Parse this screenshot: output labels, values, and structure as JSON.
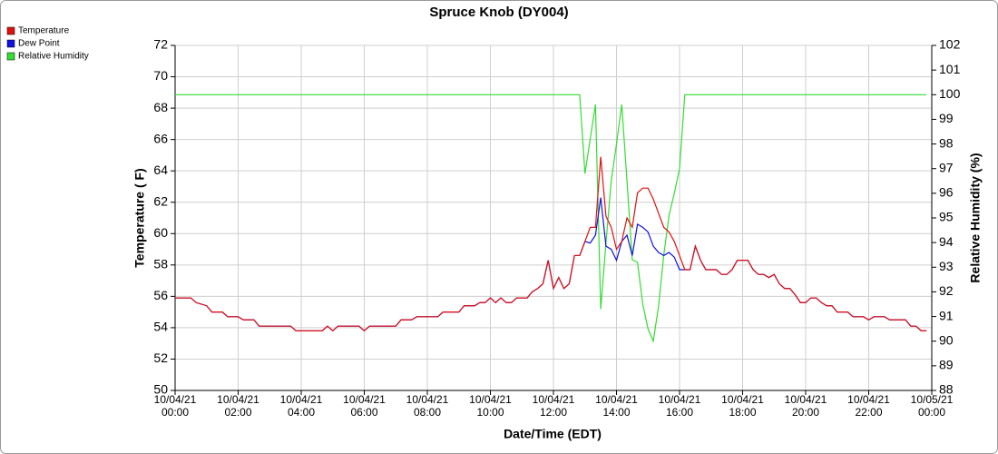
{
  "chart_data": {
    "type": "line",
    "title": "Spruce Knob (DY004)",
    "x_label": "Date/Time (EDT)",
    "y_label": "Temperature ( F)",
    "y2_label": "Relative Humidity (%)",
    "legend": "top-left",
    "grid": true,
    "xlim": [
      "10/04/21 00:00",
      "10/05/21 00:00"
    ],
    "xticks": [
      "10/04/21 00:00",
      "10/04/21 02:00",
      "10/04/21 04:00",
      "10/04/21 06:00",
      "10/04/21 08:00",
      "10/04/21 10:00",
      "10/04/21 12:00",
      "10/04/21 14:00",
      "10/04/21 16:00",
      "10/04/21 18:00",
      "10/04/21 20:00",
      "10/04/21 22:00",
      "10/05/21 00:00"
    ],
    "ylim": [
      50,
      72
    ],
    "yticks": [
      50,
      52,
      54,
      56,
      58,
      60,
      62,
      64,
      66,
      68,
      70,
      72
    ],
    "y2lim": [
      88,
      102
    ],
    "y2ticks": [
      88,
      89,
      90,
      91,
      92,
      93,
      94,
      95,
      96,
      97,
      98,
      99,
      100,
      101,
      102
    ],
    "x": [
      "10/04/21 00:00",
      "10/04/21 00:30",
      "10/04/21 00:40",
      "10/04/21 01:00",
      "10/04/21 01:10",
      "10/04/21 01:30",
      "10/04/21 01:40",
      "10/04/21 02:00",
      "10/04/21 02:10",
      "10/04/21 02:30",
      "10/04/21 02:40",
      "10/04/21 03:40",
      "10/04/21 03:50",
      "10/04/21 04:40",
      "10/04/21 04:50",
      "10/04/21 05:00",
      "10/04/21 05:10",
      "10/04/21 05:50",
      "10/04/21 06:00",
      "10/04/21 06:10",
      "10/04/21 07:00",
      "10/04/21 07:10",
      "10/04/21 07:30",
      "10/04/21 07:40",
      "10/04/21 08:20",
      "10/04/21 08:30",
      "10/04/21 09:00",
      "10/04/21 09:10",
      "10/04/21 09:30",
      "10/04/21 09:40",
      "10/04/21 09:50",
      "10/04/21 10:00",
      "10/04/21 10:10",
      "10/04/21 10:20",
      "10/04/21 10:30",
      "10/04/21 10:40",
      "10/04/21 10:50",
      "10/04/21 11:10",
      "10/04/21 11:20",
      "10/04/21 11:30",
      "10/04/21 11:40",
      "10/04/21 11:50",
      "10/04/21 12:00",
      "10/04/21 12:10",
      "10/04/21 12:20",
      "10/04/21 12:30",
      "10/04/21 12:40",
      "10/04/21 12:50",
      "10/04/21 13:00",
      "10/04/21 13:10",
      "10/04/21 13:20",
      "10/04/21 13:30",
      "10/04/21 13:40",
      "10/04/21 13:50",
      "10/04/21 14:00",
      "10/04/21 14:10",
      "10/04/21 14:20",
      "10/04/21 14:30",
      "10/04/21 14:40",
      "10/04/21 14:50",
      "10/04/21 15:00",
      "10/04/21 15:10",
      "10/04/21 15:20",
      "10/04/21 15:30",
      "10/04/21 15:40",
      "10/04/21 15:50",
      "10/04/21 16:00",
      "10/04/21 16:10",
      "10/04/21 16:20",
      "10/04/21 16:30",
      "10/04/21 16:40",
      "10/04/21 16:50",
      "10/04/21 17:10",
      "10/04/21 17:20",
      "10/04/21 17:30",
      "10/04/21 17:40",
      "10/04/21 17:50",
      "10/04/21 18:10",
      "10/04/21 18:20",
      "10/04/21 18:30",
      "10/04/21 18:40",
      "10/04/21 18:50",
      "10/04/21 19:00",
      "10/04/21 19:10",
      "10/04/21 19:20",
      "10/04/21 19:30",
      "10/04/21 19:40",
      "10/04/21 19:50",
      "10/04/21 20:00",
      "10/04/21 20:10",
      "10/04/21 20:20",
      "10/04/21 20:30",
      "10/04/21 20:40",
      "10/04/21 20:50",
      "10/04/21 21:00",
      "10/04/21 21:20",
      "10/04/21 21:30",
      "10/04/21 21:50",
      "10/04/21 22:00",
      "10/04/21 22:10",
      "10/04/21 22:30",
      "10/04/21 22:40",
      "10/04/21 23:10",
      "10/04/21 23:20",
      "10/04/21 23:30",
      "10/04/21 23:40",
      "10/04/21 23:50"
    ],
    "series": [
      {
        "name": "Temperature",
        "color": "#e01010",
        "values": [
          55.9,
          55.9,
          55.6,
          55.4,
          55.0,
          55.0,
          54.7,
          54.7,
          54.5,
          54.5,
          54.1,
          54.1,
          53.8,
          53.8,
          54.1,
          53.8,
          54.1,
          54.1,
          53.8,
          54.1,
          54.1,
          54.5,
          54.5,
          54.7,
          54.7,
          55.0,
          55.0,
          55.4,
          55.4,
          55.6,
          55.6,
          55.9,
          55.6,
          55.9,
          55.6,
          55.6,
          55.9,
          55.9,
          56.3,
          56.5,
          56.8,
          58.3,
          56.5,
          57.2,
          56.5,
          56.8,
          58.6,
          58.6,
          59.5,
          60.4,
          60.4,
          64.9,
          61.1,
          60.4,
          59.0,
          59.5,
          61.0,
          60.4,
          62.6,
          62.9,
          62.9,
          62.2,
          61.3,
          60.4,
          60.1,
          59.5,
          58.6,
          57.7,
          57.7,
          59.2,
          58.3,
          57.7,
          57.7,
          57.4,
          57.4,
          57.7,
          58.3,
          58.3,
          57.7,
          57.4,
          57.4,
          57.2,
          57.4,
          56.8,
          56.5,
          56.5,
          56.1,
          55.6,
          55.6,
          55.9,
          55.9,
          55.6,
          55.4,
          55.4,
          55.0,
          55.0,
          54.7,
          54.7,
          54.5,
          54.7,
          54.7,
          54.5,
          54.5,
          54.1,
          54.1,
          53.8,
          53.8
        ]
      },
      {
        "name": "Dew Point",
        "color": "#1010e0",
        "values": [
          55.9,
          55.9,
          55.6,
          55.4,
          55.0,
          55.0,
          54.7,
          54.7,
          54.5,
          54.5,
          54.1,
          54.1,
          53.8,
          53.8,
          54.1,
          53.8,
          54.1,
          54.1,
          53.8,
          54.1,
          54.1,
          54.5,
          54.5,
          54.7,
          54.7,
          55.0,
          55.0,
          55.4,
          55.4,
          55.6,
          55.6,
          55.9,
          55.6,
          55.9,
          55.6,
          55.6,
          55.9,
          55.9,
          56.3,
          56.5,
          56.8,
          58.3,
          56.5,
          57.2,
          56.5,
          56.8,
          58.6,
          58.6,
          59.5,
          59.4,
          59.9,
          62.3,
          59.2,
          59.0,
          58.3,
          59.5,
          59.9,
          58.6,
          60.6,
          60.4,
          60.1,
          59.2,
          58.8,
          58.6,
          58.8,
          58.5,
          57.7,
          57.7,
          57.7,
          59.2,
          58.3,
          57.7,
          57.7,
          57.4,
          57.4,
          57.7,
          58.3,
          58.3,
          57.7,
          57.4,
          57.4,
          57.2,
          57.4,
          56.8,
          56.5,
          56.5,
          56.1,
          55.6,
          55.6,
          55.9,
          55.9,
          55.6,
          55.4,
          55.4,
          55.0,
          55.0,
          54.7,
          54.7,
          54.5,
          54.7,
          54.7,
          54.5,
          54.5,
          54.1,
          54.1,
          53.8,
          53.8
        ]
      },
      {
        "name": "Relative Humidity",
        "color": "#33dd33",
        "axis": "y2",
        "values": [
          100,
          100,
          100,
          100,
          100,
          100,
          100,
          100,
          100,
          100,
          100,
          100,
          100,
          100,
          100,
          100,
          100,
          100,
          100,
          100,
          100,
          100,
          100,
          100,
          100,
          100,
          100,
          100,
          100,
          100,
          100,
          100,
          100,
          100,
          100,
          100,
          100,
          100,
          100,
          100,
          100,
          100,
          100,
          100,
          100,
          100,
          100,
          100,
          96.8,
          98.2,
          99.6,
          91.3,
          94.0,
          96.5,
          98.0,
          99.6,
          96.5,
          93.3,
          93.2,
          91.5,
          90.5,
          90.0,
          91.4,
          93.5,
          95.1,
          96.0,
          97.0,
          100,
          100,
          100,
          100,
          100,
          100,
          100,
          100,
          100,
          100,
          100,
          100,
          100,
          100,
          100,
          100,
          100,
          100,
          100,
          100,
          100,
          100,
          100,
          100,
          100,
          100,
          100,
          100,
          100,
          100,
          100,
          100,
          100,
          100,
          100,
          100,
          100,
          100,
          100,
          100
        ]
      }
    ]
  }
}
